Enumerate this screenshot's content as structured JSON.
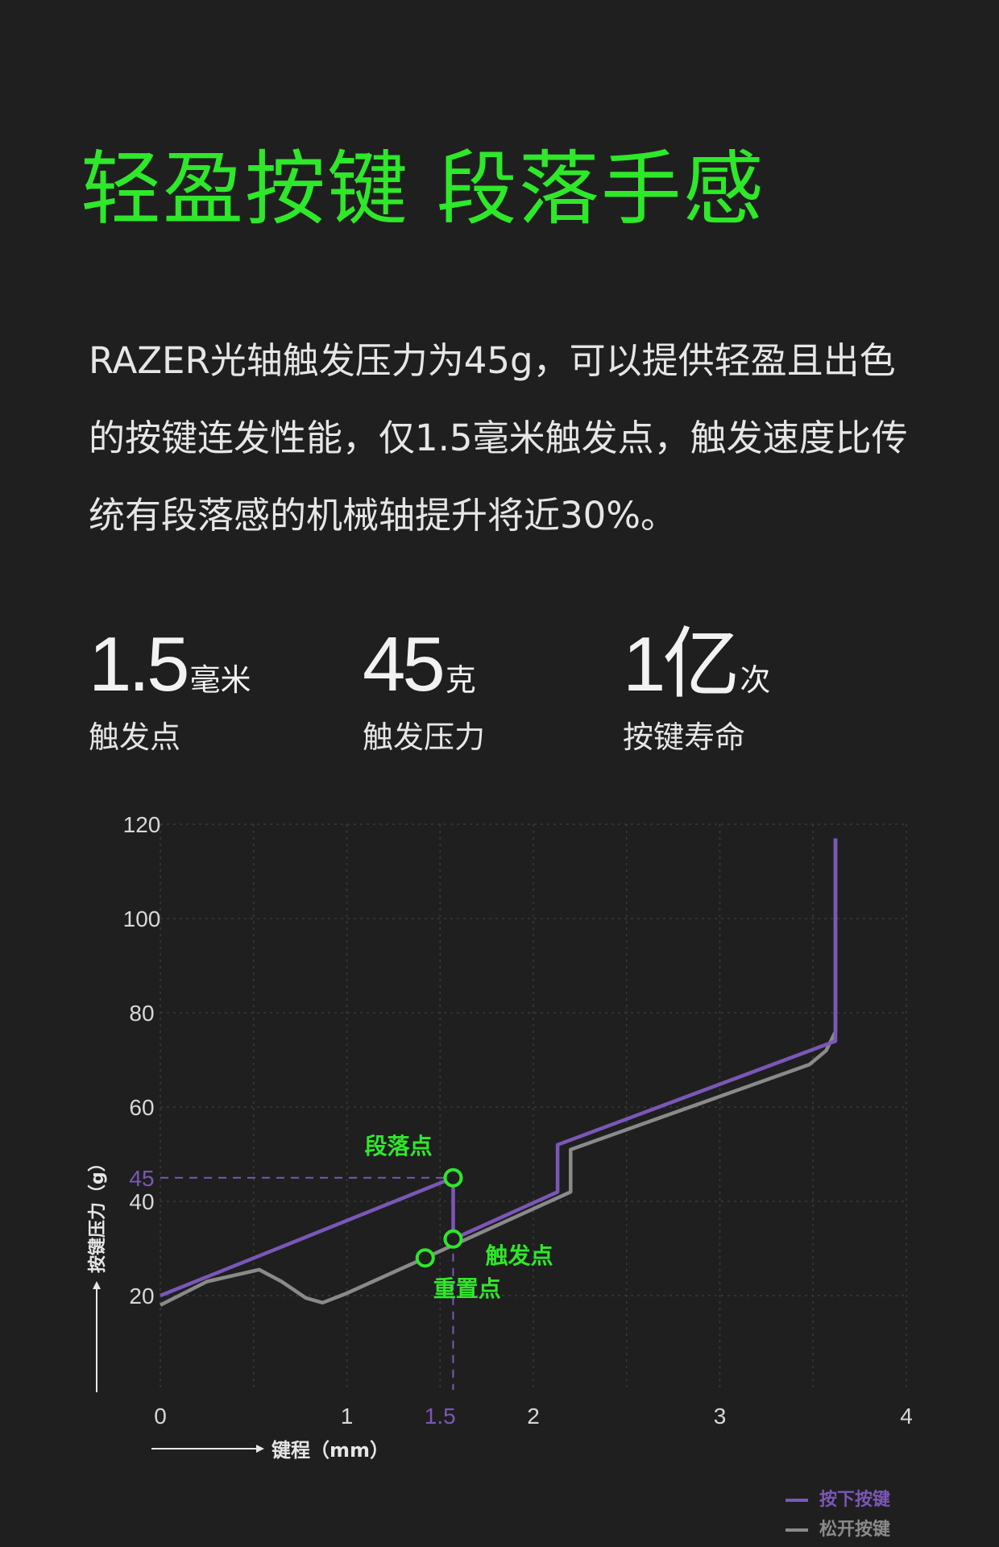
{
  "title": "轻盈按键 段落手感",
  "description": "RAZER光轴触发压力为45g，可以提供轻盈且出色的按键连发性能，仅1.5毫米触发点，触发速度比传统有段落感的机械轴提升将近30%。",
  "stats": [
    {
      "value": "1.5",
      "unit": "毫米",
      "label": "触发点"
    },
    {
      "value": "45",
      "unit": "克",
      "label": "触发压力"
    },
    {
      "value": "1亿",
      "unit": "次",
      "label": "按键寿命"
    }
  ],
  "colors": {
    "title": "#2ee82a",
    "press": "#7b57b8",
    "release": "#8a8a8a",
    "annotation": "#2ee82a"
  },
  "chart_data": {
    "type": "line",
    "xlabel": "键程（mm）",
    "ylabel": "按键压力（g）",
    "x_ticks": [
      "0",
      "1",
      "1.5",
      "2",
      "3",
      "4"
    ],
    "x_tick_values": [
      0,
      1,
      1.5,
      2,
      3,
      4
    ],
    "y_ticks": [
      "20",
      "40",
      "45",
      "60",
      "80",
      "100",
      "120"
    ],
    "y_tick_values": [
      20,
      40,
      45,
      60,
      80,
      100,
      120
    ],
    "xlim": [
      0,
      4
    ],
    "ylim": [
      0,
      120
    ],
    "grid": true,
    "legend_position": "bottom-right",
    "series": [
      {
        "name": "按下按键",
        "color": "#7b57b8",
        "points": [
          [
            0,
            20
          ],
          [
            1.57,
            45
          ],
          [
            1.57,
            32
          ],
          [
            2.13,
            42
          ],
          [
            2.13,
            52
          ],
          [
            3.62,
            74
          ],
          [
            3.62,
            117
          ]
        ]
      },
      {
        "name": "松开按键",
        "color": "#8a8a8a",
        "points": [
          [
            0,
            18
          ],
          [
            0.25,
            23
          ],
          [
            0.53,
            25.5
          ],
          [
            0.65,
            23
          ],
          [
            0.78,
            19.5
          ],
          [
            0.87,
            18.5
          ],
          [
            1.0,
            20.5
          ],
          [
            1.42,
            28
          ],
          [
            2.2,
            42
          ],
          [
            2.2,
            51
          ],
          [
            3.48,
            69
          ],
          [
            3.57,
            72
          ],
          [
            3.62,
            76
          ],
          [
            3.62,
            117
          ]
        ]
      }
    ],
    "annotations": [
      {
        "label": "段落点",
        "x": 1.57,
        "y": 45
      },
      {
        "label": "触发点",
        "x": 1.57,
        "y": 32
      },
      {
        "label": "重置点",
        "x": 1.42,
        "y": 28
      }
    ]
  }
}
